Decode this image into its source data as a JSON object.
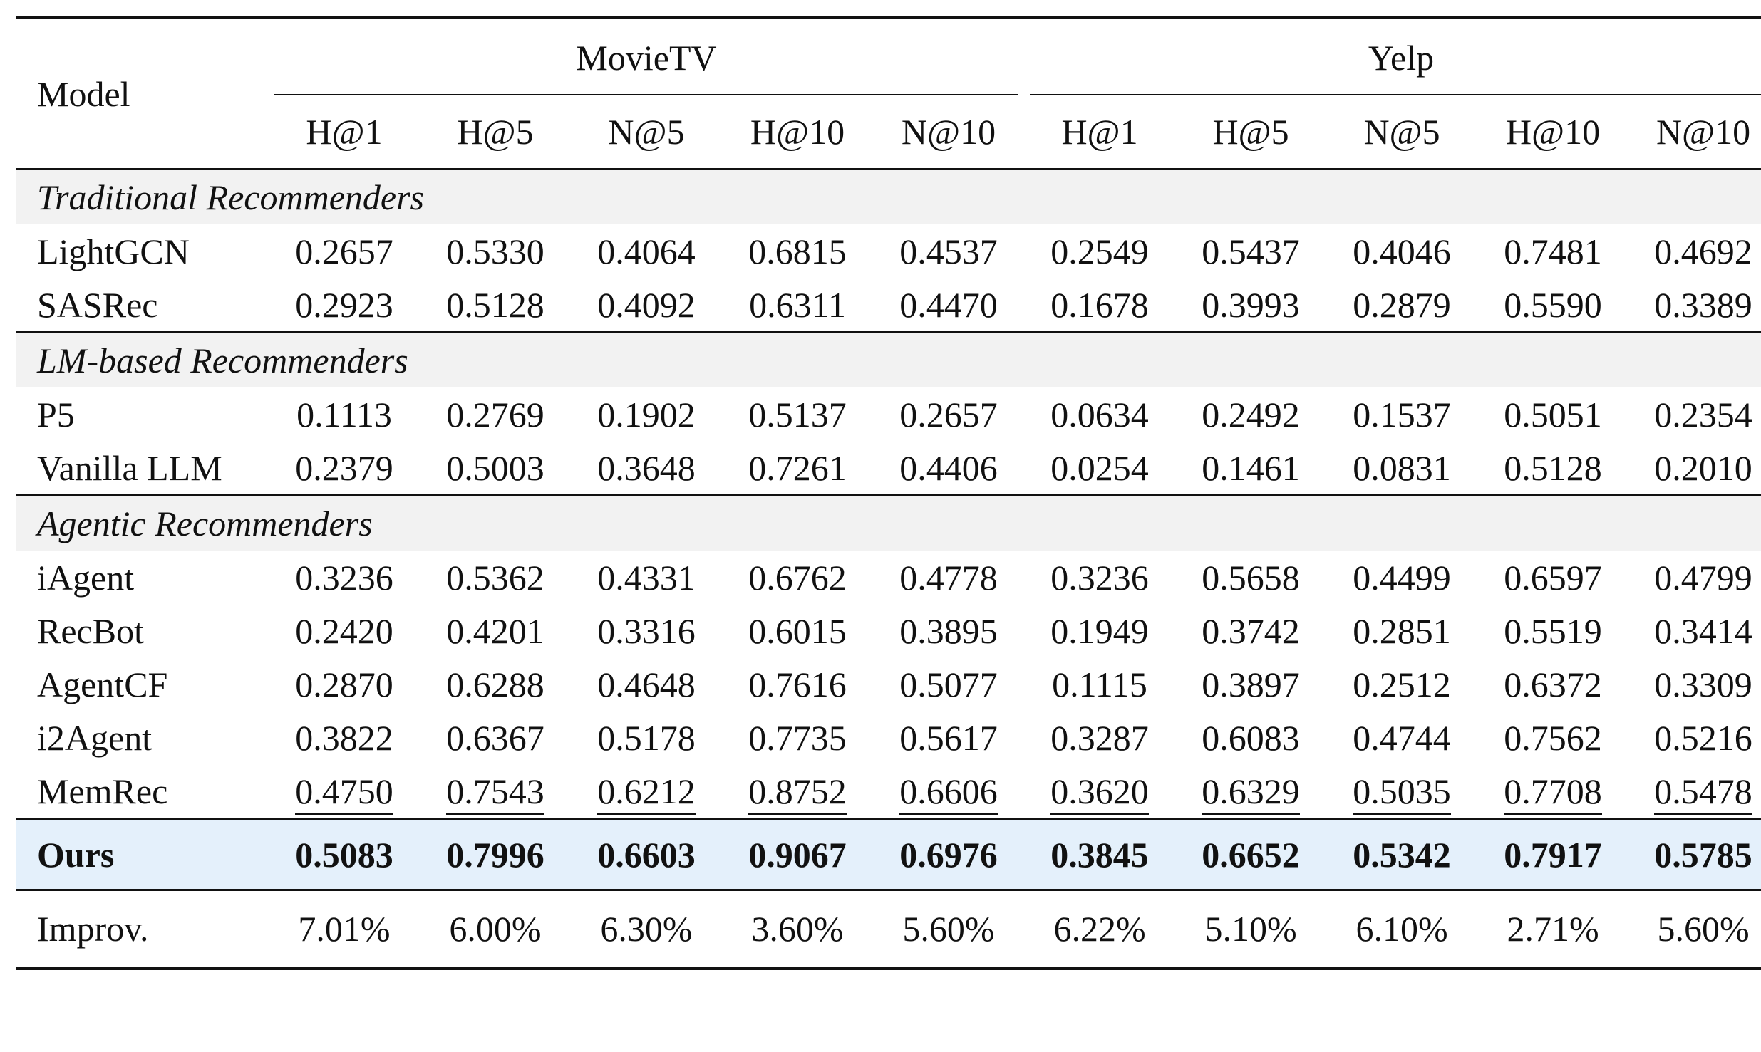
{
  "header": {
    "model_label": "Model",
    "groups": [
      "MovieTV",
      "Yelp"
    ],
    "metrics": [
      "H@1",
      "H@5",
      "N@5",
      "H@10",
      "N@10",
      "H@1",
      "H@5",
      "N@5",
      "H@10",
      "N@10"
    ]
  },
  "sections": [
    {
      "title": "Traditional Recommenders",
      "rows": [
        {
          "model": "LightGCN",
          "values": [
            "0.2657",
            "0.5330",
            "0.4064",
            "0.6815",
            "0.4537",
            "0.2549",
            "0.5437",
            "0.4046",
            "0.7481",
            "0.4692"
          ]
        },
        {
          "model": "SASRec",
          "values": [
            "0.2923",
            "0.5128",
            "0.4092",
            "0.6311",
            "0.4470",
            "0.1678",
            "0.3993",
            "0.2879",
            "0.5590",
            "0.3389"
          ]
        }
      ]
    },
    {
      "title": "LM-based Recommenders",
      "rows": [
        {
          "model": "P5",
          "values": [
            "0.1113",
            "0.2769",
            "0.1902",
            "0.5137",
            "0.2657",
            "0.0634",
            "0.2492",
            "0.1537",
            "0.5051",
            "0.2354"
          ]
        },
        {
          "model": "Vanilla LLM",
          "values": [
            "0.2379",
            "0.5003",
            "0.3648",
            "0.7261",
            "0.4406",
            "0.0254",
            "0.1461",
            "0.0831",
            "0.5128",
            "0.2010"
          ]
        }
      ]
    },
    {
      "title": "Agentic Recommenders",
      "rows": [
        {
          "model": "iAgent",
          "values": [
            "0.3236",
            "0.5362",
            "0.4331",
            "0.6762",
            "0.4778",
            "0.3236",
            "0.5658",
            "0.4499",
            "0.6597",
            "0.4799"
          ]
        },
        {
          "model": "RecBot",
          "values": [
            "0.2420",
            "0.4201",
            "0.3316",
            "0.6015",
            "0.3895",
            "0.1949",
            "0.3742",
            "0.2851",
            "0.5519",
            "0.3414"
          ]
        },
        {
          "model": "AgentCF",
          "values": [
            "0.2870",
            "0.6288",
            "0.4648",
            "0.7616",
            "0.5077",
            "0.1115",
            "0.3897",
            "0.2512",
            "0.6372",
            "0.3309"
          ]
        },
        {
          "model": "i2Agent",
          "values": [
            "0.3822",
            "0.6367",
            "0.5178",
            "0.7735",
            "0.5617",
            "0.3287",
            "0.6083",
            "0.4744",
            "0.7562",
            "0.5216"
          ]
        },
        {
          "model": "MemRec",
          "values": [
            "0.4750",
            "0.7543",
            "0.6212",
            "0.8752",
            "0.6606",
            "0.3620",
            "0.6329",
            "0.5035",
            "0.7708",
            "0.5478"
          ],
          "underlined": true
        }
      ]
    }
  ],
  "ours": {
    "model": "Ours",
    "values": [
      "0.5083",
      "0.7996",
      "0.6603",
      "0.9067",
      "0.6976",
      "0.3845",
      "0.6652",
      "0.5342",
      "0.7917",
      "0.5785"
    ]
  },
  "improv": {
    "model": "Improv.",
    "values": [
      "7.01%",
      "6.00%",
      "6.30%",
      "3.60%",
      "5.60%",
      "6.22%",
      "5.10%",
      "6.10%",
      "2.71%",
      "5.60%"
    ]
  },
  "colors": {
    "section_bg": "#f2f2f2",
    "ours_bg": "#e4f0fb",
    "rule": "#111111"
  }
}
